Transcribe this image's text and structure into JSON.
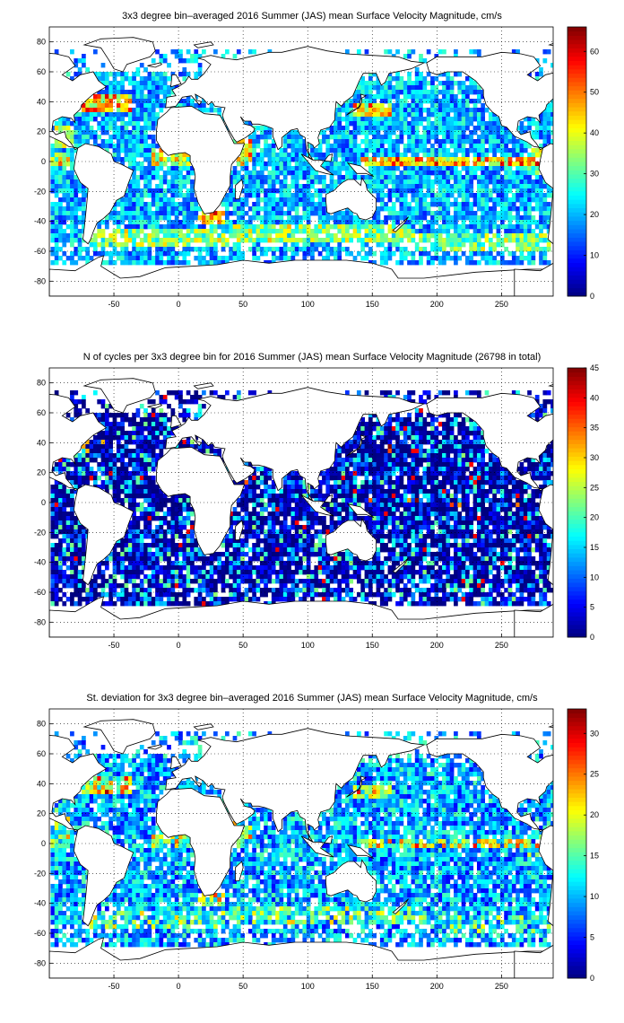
{
  "panels": [
    {
      "title": "3x3 degree bin–averaged 2016 Summer (JAS) mean Surface Velocity Magnitude, cm/s",
      "colorbar": {
        "min": 0,
        "max": 66,
        "ticks": [
          "0",
          "10",
          "20",
          "30",
          "40",
          "50",
          "60"
        ],
        "tick_values": [
          0,
          10,
          20,
          30,
          40,
          50,
          60
        ]
      },
      "field": "mean_speed"
    },
    {
      "title": "N of cycles per 3x3 degree bin for 2016 Summer (JAS) mean Surface Velocity Magnitude (26798 in total)",
      "colorbar": {
        "min": 0,
        "max": 45,
        "ticks": [
          "0",
          "5",
          "10",
          "15",
          "20",
          "25",
          "30",
          "35",
          "40",
          "45"
        ],
        "tick_values": [
          0,
          5,
          10,
          15,
          20,
          25,
          30,
          35,
          40,
          45
        ]
      },
      "field": "count"
    },
    {
      "title": "St. deviation for 3x3 degree bin–averaged 2016 Summer (JAS) mean Surface Velocity Magnitude, cm/s",
      "colorbar": {
        "min": 0,
        "max": 33,
        "ticks": [
          "0",
          "5",
          "10",
          "15",
          "20",
          "25",
          "30"
        ],
        "tick_values": [
          0,
          5,
          10,
          15,
          20,
          25,
          30
        ]
      },
      "field": "std"
    }
  ],
  "axes": {
    "x_ticks": [
      "-50",
      "0",
      "50",
      "100",
      "150",
      "200",
      "250"
    ],
    "x_tick_values": [
      -50,
      0,
      50,
      100,
      150,
      200,
      250
    ],
    "y_ticks": [
      "80",
      "60",
      "40",
      "20",
      "0",
      "-20",
      "-40",
      "-60",
      "-80"
    ],
    "y_tick_values": [
      80,
      60,
      40,
      20,
      0,
      -20,
      -40,
      -60,
      -80
    ],
    "xlim": [
      -100,
      290
    ],
    "ylim": [
      -90,
      90
    ],
    "grid": "dotted",
    "bin_size_deg": 3,
    "colormap": "jet"
  },
  "chart_data": [
    {
      "type": "heatmap",
      "title": "3x3 degree bin–averaged 2016 Summer (JAS) mean Surface Velocity Magnitude, cm/s",
      "xlim": [
        -100,
        290
      ],
      "ylim": [
        -90,
        90
      ],
      "clim": [
        0,
        66
      ],
      "colorbar_ticks": [
        0,
        10,
        20,
        30,
        40,
        50,
        60
      ],
      "high_value_regions": [
        "Gulf Stream (~40N, -70 to -40)",
        "Equatorial band (~0, 150-280)",
        "Agulhas (~-38, 20-30)",
        "Kuroshio (~35N, 140-160)",
        "Somali Current (~10N, 50)",
        "Southern Ocean band (~-50 to -60)"
      ],
      "typical_value": 15
    },
    {
      "type": "heatmap",
      "title": "N of cycles per 3x3 degree bin for 2016 Summer (JAS) mean Surface Velocity Magnitude (26798 in total)",
      "xlim": [
        -100,
        290
      ],
      "ylim": [
        -90,
        90
      ],
      "clim": [
        0,
        45
      ],
      "colorbar_ticks": [
        0,
        5,
        10,
        15,
        20,
        25,
        30,
        35,
        40,
        45
      ],
      "total_cycles": 26798,
      "typical_value": 5
    },
    {
      "type": "heatmap",
      "title": "St. deviation for 3x3 degree bin–averaged 2016 Summer (JAS) mean Surface Velocity Magnitude, cm/s",
      "xlim": [
        -100,
        290
      ],
      "ylim": [
        -90,
        90
      ],
      "clim": [
        0,
        33
      ],
      "colorbar_ticks": [
        0,
        5,
        10,
        15,
        20,
        25,
        30
      ],
      "typical_value": 8
    }
  ]
}
